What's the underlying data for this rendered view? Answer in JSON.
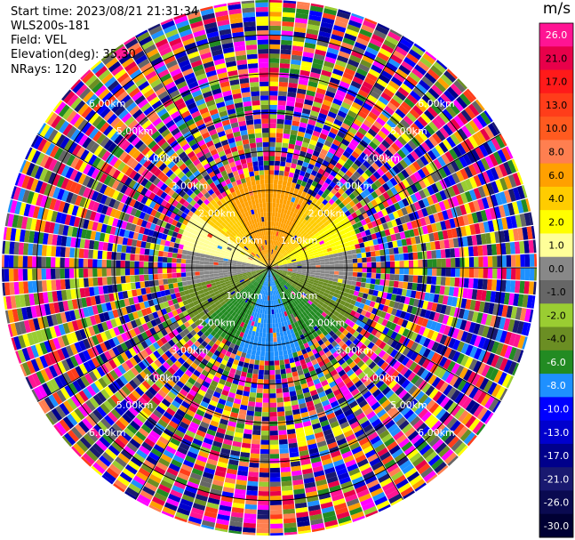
{
  "header": {
    "start_time": "Start time: 2023/08/21 21:31:34",
    "instrument": "WLS200s-181",
    "field": "Field: VEL",
    "elevation": "Elevation(deg): 35.30",
    "nrays": "NRays: 120"
  },
  "chart_data": {
    "type": "heatmap",
    "subtype": "ppi-polar",
    "field": "VEL",
    "units": "m/s",
    "nrays": 120,
    "ring_labels": [
      "1.00km",
      "2.00km",
      "3.00km",
      "4.00km",
      "5.00km",
      "6.00km"
    ],
    "ring_ranges_km": [
      1,
      2,
      3,
      4,
      5,
      6
    ],
    "max_range_km": 6.9,
    "valid_data_range_km": 2.4,
    "colorbar": {
      "title": "m/s",
      "ticks": [
        "26.0",
        "21.0",
        "17.0",
        "13.0",
        "10.0",
        "8.0",
        "6.0",
        "4.0",
        "2.0",
        "1.0",
        "0.0",
        "-1.0",
        "-2.0",
        "-4.0",
        "-6.0",
        "-8.0",
        "-10.0",
        "-13.0",
        "-17.0",
        "-21.0",
        "-26.0",
        "-30.0"
      ],
      "colors": [
        "#ff1493",
        "#e8004a",
        "#ff1a1a",
        "#ff3d1a",
        "#ff5a1f",
        "#ff7f50",
        "#ffa000",
        "#ffcc00",
        "#ffff00",
        "#ffff99",
        "#888888",
        "#666666",
        "#9acd32",
        "#6b8e23",
        "#228b22",
        "#1e90ff",
        "#0000ff",
        "#0000cd",
        "#00008b",
        "#191970",
        "#0a0a50",
        "#000033"
      ]
    }
  }
}
